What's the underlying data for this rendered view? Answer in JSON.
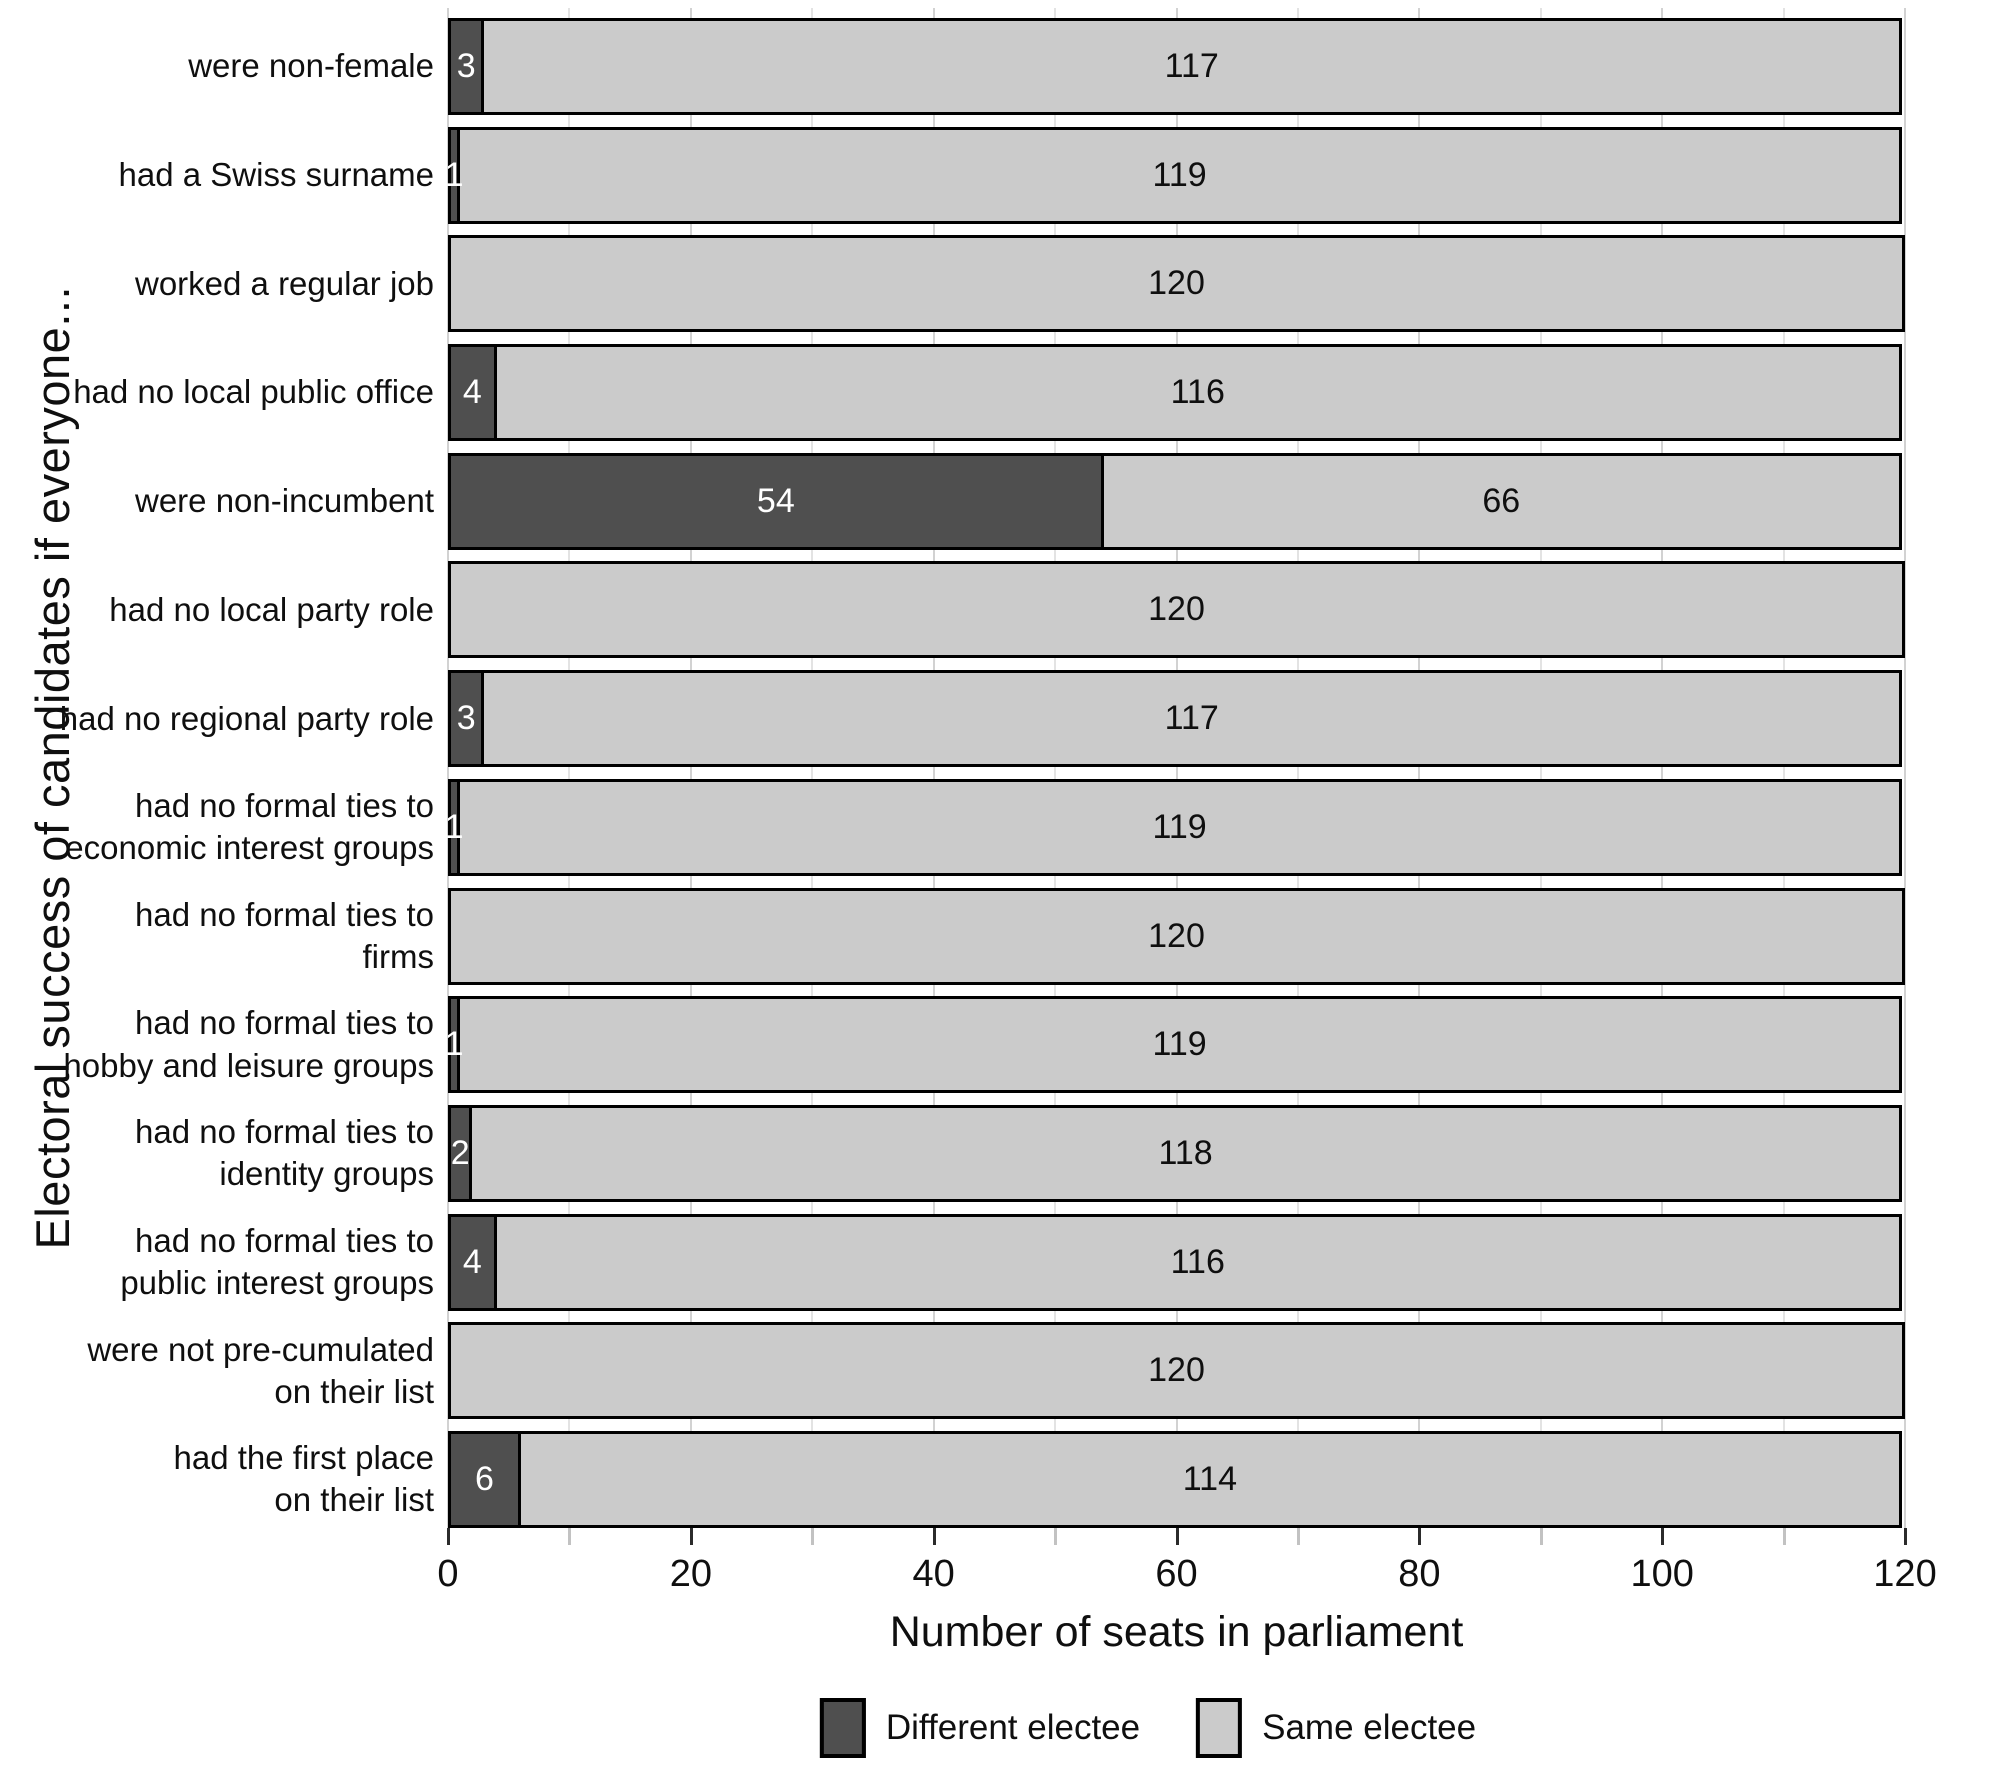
{
  "chart_data": {
    "type": "bar",
    "orientation": "horizontal",
    "stacked": true,
    "xlabel": "Number of seats in parliament",
    "ylabel": "Electoral success of candidates if everyone...",
    "xlim": [
      0,
      120
    ],
    "x_major_ticks": [
      0,
      20,
      40,
      60,
      80,
      100,
      120
    ],
    "x_minor_step": 10,
    "grid": "vertical light-gray lines every 10 units",
    "legend_position": "bottom-center",
    "categories": [
      "were non-female",
      "had a Swiss surname",
      "worked a regular job",
      "had no local public office",
      "were non-incumbent",
      "had no local party role",
      "had no regional party role",
      "had no formal ties to economic interest groups",
      "had no formal ties to firms",
      "had no formal ties to hobby and leisure groups",
      "had no formal ties to identity groups",
      "had no formal ties to public interest groups",
      "were not pre-cumulated on their list",
      "had the first place on their list"
    ],
    "categories_wrapped": [
      [
        "were non-female"
      ],
      [
        "had a Swiss surname"
      ],
      [
        "worked a regular job"
      ],
      [
        "had no local public office"
      ],
      [
        "were non-incumbent"
      ],
      [
        "had no local party role"
      ],
      [
        "had no regional party role"
      ],
      [
        "had no formal ties to",
        "economic interest groups"
      ],
      [
        "had no formal ties to",
        "firms"
      ],
      [
        "had no formal ties to",
        "hobby and leisure groups"
      ],
      [
        "had no formal ties to",
        "identity groups"
      ],
      [
        "had no formal ties to",
        "public interest groups"
      ],
      [
        "were not pre-cumulated",
        "on their list"
      ],
      [
        "had the first place",
        "on their list"
      ]
    ],
    "series": [
      {
        "name": "Different electee",
        "color": "#4F4F4F",
        "values": [
          3,
          1,
          0,
          4,
          54,
          0,
          3,
          1,
          0,
          1,
          2,
          4,
          0,
          6
        ]
      },
      {
        "name": "Same electee",
        "color": "#CBCBCB",
        "values": [
          117,
          119,
          120,
          116,
          66,
          120,
          117,
          119,
          120,
          119,
          118,
          116,
          120,
          114
        ]
      }
    ]
  },
  "colors": {
    "different_electee": "#4F4F4F",
    "same_electee": "#CBCBCB",
    "bar_border": "#000000",
    "grid_major": "#d2d2d2",
    "grid_minor": "#e3e3e3",
    "text": "#0f0f0f"
  }
}
